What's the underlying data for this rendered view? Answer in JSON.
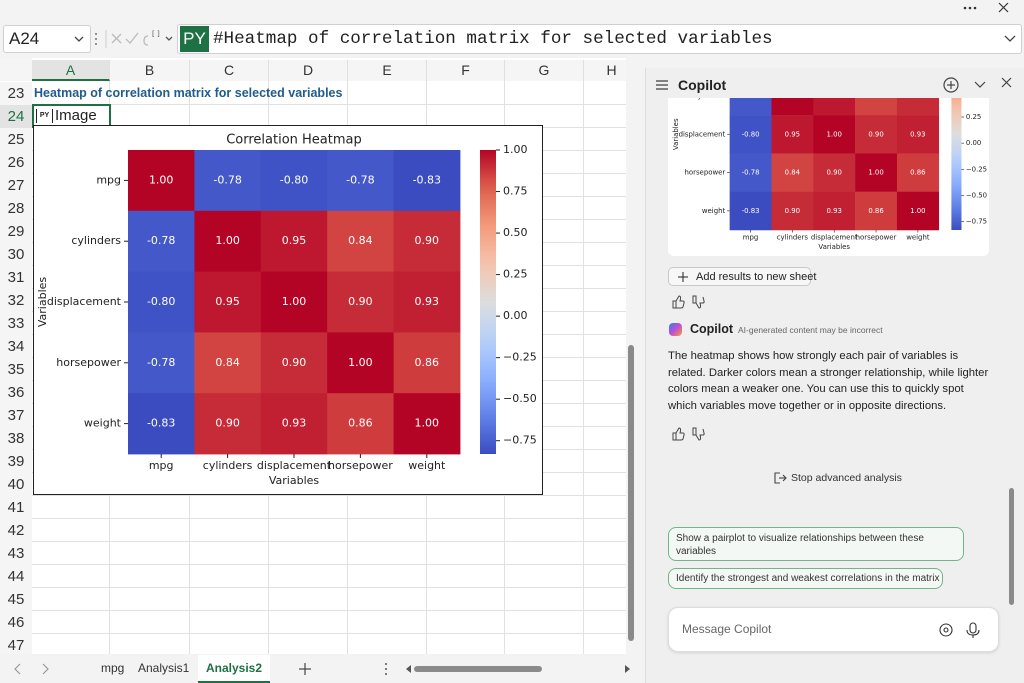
{
  "name_box": "A24",
  "formula_bar": {
    "badge": "PY",
    "formula": "#Heatmap of correlation matrix for selected variables"
  },
  "sheet": {
    "columns": [
      "A",
      "B",
      "C",
      "D",
      "E",
      "F",
      "G",
      "H"
    ],
    "rows": [
      "23",
      "24",
      "25",
      "26",
      "27",
      "28",
      "29",
      "30",
      "31",
      "32",
      "33",
      "34",
      "35",
      "36",
      "37",
      "38",
      "39",
      "40",
      "41",
      "42",
      "43",
      "44",
      "45",
      "46",
      "47"
    ],
    "title_cell": "Heatmap of correlation matrix for selected variables",
    "image_cell": {
      "icon": "PY",
      "text": "Image"
    }
  },
  "sheet_tabs": [
    "mpg",
    "Analysis1",
    "Analysis2"
  ],
  "active_tab": 2,
  "copilot": {
    "title": "Copilot",
    "add_results": "Add results to new sheet",
    "assistant_name": "Copilot",
    "disclaimer": "AI-generated content may be incorrect",
    "message": "The heatmap shows how strongly each pair of variables is related. Darker colors mean a stronger relationship, while lighter colors mean a weaker one. You can use this to quickly spot which variables move together or in opposite directions.",
    "stop": "Stop advanced analysis",
    "suggestions": [
      "Show a pairplot to visualize relationships between these variables",
      "Identify the strongest and weakest correlations in the matrix"
    ],
    "input_placeholder": "Message Copilot"
  },
  "chart_data": {
    "type": "heatmap",
    "title": "Correlation Heatmap",
    "x_label": "Variables",
    "y_label": "Variables",
    "x_categories": [
      "mpg",
      "cylinders",
      "displacement",
      "horsepower",
      "weight"
    ],
    "y_categories": [
      "mpg",
      "cylinders",
      "displacement",
      "horsepower",
      "weight"
    ],
    "values": [
      [
        1.0,
        -0.78,
        -0.8,
        -0.78,
        -0.83
      ],
      [
        -0.78,
        1.0,
        0.95,
        0.84,
        0.9
      ],
      [
        -0.8,
        0.95,
        1.0,
        0.9,
        0.93
      ],
      [
        -0.78,
        0.84,
        0.9,
        1.0,
        0.86
      ],
      [
        -0.83,
        0.9,
        0.93,
        0.86,
        1.0
      ]
    ],
    "value_labels": [
      [
        "1.00",
        "-0.78",
        "-0.80",
        "-0.78",
        "-0.83"
      ],
      [
        "-0.78",
        "1.00",
        "0.95",
        "0.84",
        "0.90"
      ],
      [
        "-0.80",
        "0.95",
        "1.00",
        "0.90",
        "0.93"
      ],
      [
        "-0.78",
        "0.84",
        "0.90",
        "1.00",
        "0.86"
      ],
      [
        "-0.83",
        "0.90",
        "0.93",
        "0.86",
        "1.00"
      ]
    ],
    "colormap": "coolwarm",
    "zlim": [
      -0.83,
      1.0
    ],
    "zticks": [
      {
        "value": 1.0,
        "label": "1.00"
      },
      0.75,
      {
        "value": 0.5,
        "label": "0.50"
      },
      0.25,
      {
        "value": 0,
        "label": "0.00"
      },
      {
        "value": -0.25,
        "label": "−0.25"
      },
      {
        "value": -0.5,
        "label": "−0.50"
      },
      {
        "value": -0.75,
        "label": "−0.75"
      }
    ]
  }
}
